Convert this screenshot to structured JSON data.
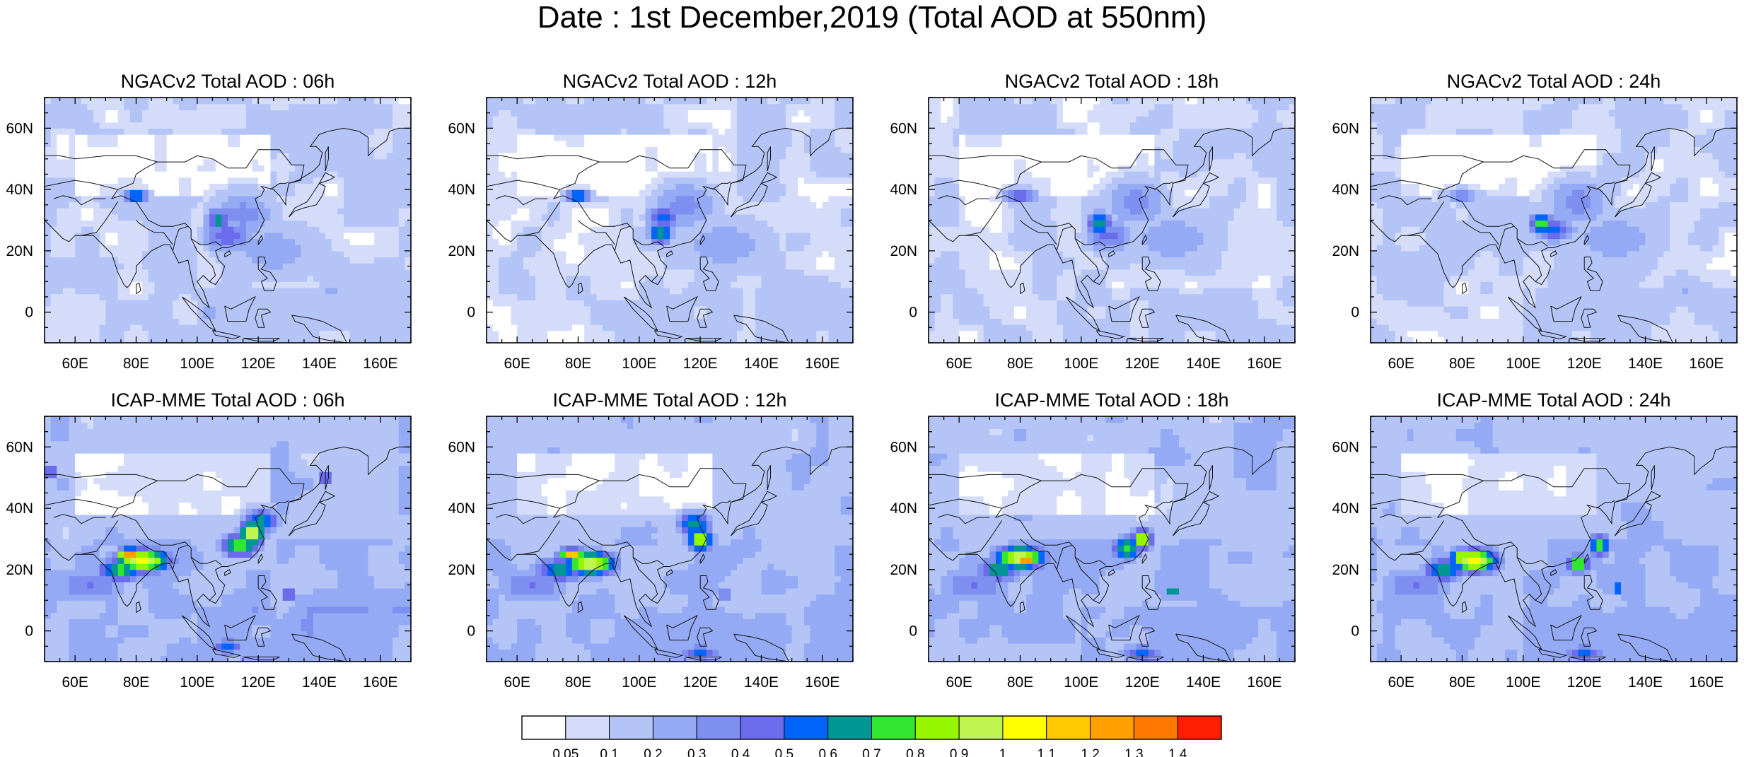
{
  "figure": {
    "title": "Date : 1st December,2019 (Total AOD at 550nm)"
  },
  "chart_data": {
    "type": "heatmap",
    "title": "Date : 1st December,2019 (Total AOD at 550nm)",
    "lon_range": [
      50,
      170
    ],
    "lat_range": [
      -10,
      70
    ],
    "x_ticks": [
      "60E",
      "80E",
      "100E",
      "120E",
      "140E",
      "160E"
    ],
    "y_ticks": [
      "0",
      "20N",
      "40N",
      "60N"
    ],
    "grid": false,
    "panels": [
      {
        "title": "NGACv2 Total AOD : 06h",
        "model": "NGACv2",
        "forecast_hour": "06h",
        "hotspots": [
          {
            "lon": 80,
            "lat": 38,
            "aod": 0.75,
            "sx": 3,
            "sy": 1.5
          },
          {
            "lon": 107,
            "lat": 30,
            "aod": 0.65,
            "sx": 3,
            "sy": 3
          },
          {
            "lon": 110,
            "lat": 25,
            "aod": 0.5,
            "sx": 6,
            "sy": 4
          },
          {
            "lon": 115,
            "lat": 32,
            "aod": 0.35,
            "sx": 8,
            "sy": 6
          },
          {
            "lon": 125,
            "lat": 20,
            "aod": 0.25,
            "sx": 14,
            "sy": 8
          }
        ]
      },
      {
        "title": "NGACv2 Total AOD : 12h",
        "model": "NGACv2",
        "forecast_hour": "12h",
        "hotspots": [
          {
            "lon": 80,
            "lat": 38,
            "aod": 0.72,
            "sx": 3,
            "sy": 1.5
          },
          {
            "lon": 107,
            "lat": 26,
            "aod": 0.7,
            "sx": 3,
            "sy": 3
          },
          {
            "lon": 108,
            "lat": 31,
            "aod": 0.55,
            "sx": 4,
            "sy": 3
          },
          {
            "lon": 115,
            "lat": 35,
            "aod": 0.35,
            "sx": 8,
            "sy": 6
          },
          {
            "lon": 128,
            "lat": 22,
            "aod": 0.25,
            "sx": 14,
            "sy": 8
          }
        ]
      },
      {
        "title": "NGACv2 Total AOD : 18h",
        "model": "NGACv2",
        "forecast_hour": "18h",
        "hotspots": [
          {
            "lon": 80,
            "lat": 38,
            "aod": 0.5,
            "sx": 4,
            "sy": 2
          },
          {
            "lon": 106,
            "lat": 29,
            "aod": 0.68,
            "sx": 3,
            "sy": 3
          },
          {
            "lon": 109,
            "lat": 25,
            "aod": 0.45,
            "sx": 6,
            "sy": 4
          },
          {
            "lon": 118,
            "lat": 36,
            "aod": 0.35,
            "sx": 8,
            "sy": 6
          },
          {
            "lon": 130,
            "lat": 24,
            "aod": 0.25,
            "sx": 14,
            "sy": 8
          }
        ]
      },
      {
        "title": "NGACv2 Total AOD : 24h",
        "model": "NGACv2",
        "forecast_hour": "24h",
        "hotspots": [
          {
            "lon": 80,
            "lat": 38,
            "aod": 0.35,
            "sx": 5,
            "sy": 2
          },
          {
            "lon": 106,
            "lat": 29,
            "aod": 0.75,
            "sx": 3,
            "sy": 2.5
          },
          {
            "lon": 110,
            "lat": 27,
            "aod": 0.55,
            "sx": 5,
            "sy": 3
          },
          {
            "lon": 118,
            "lat": 36,
            "aod": 0.35,
            "sx": 8,
            "sy": 6
          },
          {
            "lon": 130,
            "lat": 24,
            "aod": 0.25,
            "sx": 14,
            "sy": 8
          }
        ]
      },
      {
        "title": "ICAP-MME Total AOD : 06h",
        "model": "ICAP-MME",
        "forecast_hour": "06h",
        "hotspots": [
          {
            "lon": 78,
            "lat": 25,
            "aod": 1.35,
            "sx": 3,
            "sy": 1.5
          },
          {
            "lon": 82,
            "lat": 23,
            "aod": 1.05,
            "sx": 7,
            "sy": 3
          },
          {
            "lon": 75,
            "lat": 20,
            "aod": 0.75,
            "sx": 6,
            "sy": 3
          },
          {
            "lon": 118,
            "lat": 32,
            "aod": 1.1,
            "sx": 3,
            "sy": 3
          },
          {
            "lon": 114,
            "lat": 28,
            "aod": 0.8,
            "sx": 5,
            "sy": 3
          },
          {
            "lon": 121,
            "lat": 36,
            "aod": 0.7,
            "sx": 4,
            "sy": 3
          },
          {
            "lon": 130,
            "lat": 12,
            "aod": 0.75,
            "sx": 1.5,
            "sy": 1.5
          },
          {
            "lon": 52,
            "lat": 52,
            "aod": 0.6,
            "sx": 2,
            "sy": 2
          },
          {
            "lon": 142,
            "lat": 50,
            "aod": 0.55,
            "sx": 2,
            "sy": 2
          },
          {
            "lon": 110,
            "lat": -5,
            "aod": 0.6,
            "sx": 4,
            "sy": 2
          },
          {
            "lon": 65,
            "lat": 15,
            "aod": 0.4,
            "sx": 10,
            "sy": 5
          }
        ]
      },
      {
        "title": "ICAP-MME Total AOD : 12h",
        "model": "ICAP-MME",
        "forecast_hour": "12h",
        "hotspots": [
          {
            "lon": 78,
            "lat": 25,
            "aod": 1.25,
            "sx": 3,
            "sy": 1.5
          },
          {
            "lon": 84,
            "lat": 22,
            "aod": 1.05,
            "sx": 6,
            "sy": 3
          },
          {
            "lon": 74,
            "lat": 20,
            "aod": 0.7,
            "sx": 6,
            "sy": 3
          },
          {
            "lon": 120,
            "lat": 30,
            "aod": 0.95,
            "sx": 3,
            "sy": 3
          },
          {
            "lon": 118,
            "lat": 35,
            "aod": 0.7,
            "sx": 4,
            "sy": 3
          },
          {
            "lon": 128,
            "lat": 12,
            "aod": 0.6,
            "sx": 1.5,
            "sy": 1.5
          },
          {
            "lon": 120,
            "lat": -7,
            "aod": 0.55,
            "sx": 5,
            "sy": 2
          },
          {
            "lon": 65,
            "lat": 15,
            "aod": 0.4,
            "sx": 10,
            "sy": 5
          }
        ]
      },
      {
        "title": "ICAP-MME Total AOD : 18h",
        "model": "ICAP-MME",
        "forecast_hour": "18h",
        "hotspots": [
          {
            "lon": 82,
            "lat": 23,
            "aod": 1.3,
            "sx": 3,
            "sy": 1.5
          },
          {
            "lon": 80,
            "lat": 24,
            "aod": 1.05,
            "sx": 6,
            "sy": 3
          },
          {
            "lon": 73,
            "lat": 20,
            "aod": 0.7,
            "sx": 5,
            "sy": 3
          },
          {
            "lon": 120,
            "lat": 30,
            "aod": 0.95,
            "sx": 2.5,
            "sy": 2.5
          },
          {
            "lon": 115,
            "lat": 27,
            "aod": 0.75,
            "sx": 4,
            "sy": 3
          },
          {
            "lon": 130,
            "lat": 13,
            "aod": 0.75,
            "sx": 1.5,
            "sy": 1.5
          },
          {
            "lon": 120,
            "lat": -7,
            "aod": 0.55,
            "sx": 5,
            "sy": 2
          },
          {
            "lon": 65,
            "lat": 15,
            "aod": 0.4,
            "sx": 10,
            "sy": 5
          }
        ]
      },
      {
        "title": "ICAP-MME Total AOD : 24h",
        "model": "ICAP-MME",
        "forecast_hour": "24h",
        "hotspots": [
          {
            "lon": 80,
            "lat": 24,
            "aod": 1.15,
            "sx": 3,
            "sy": 1.5
          },
          {
            "lon": 84,
            "lat": 23,
            "aod": 1.05,
            "sx": 6,
            "sy": 3
          },
          {
            "lon": 74,
            "lat": 20,
            "aod": 0.7,
            "sx": 5,
            "sy": 3
          },
          {
            "lon": 118,
            "lat": 22,
            "aod": 0.85,
            "sx": 3,
            "sy": 2.5
          },
          {
            "lon": 125,
            "lat": 28,
            "aod": 0.75,
            "sx": 3,
            "sy": 3
          },
          {
            "lon": 131,
            "lat": 14,
            "aod": 0.7,
            "sx": 1.5,
            "sy": 1.5
          },
          {
            "lon": 120,
            "lat": -7,
            "aod": 0.55,
            "sx": 5,
            "sy": 2
          },
          {
            "lon": 65,
            "lat": 15,
            "aod": 0.4,
            "sx": 10,
            "sy": 5
          }
        ]
      }
    ],
    "colorbar": {
      "levels": [
        "0.05",
        "0.1",
        "0.2",
        "0.3",
        "0.4",
        "0.5",
        "0.6",
        "0.7",
        "0.8",
        "0.9",
        "1",
        "1.1",
        "1.2",
        "1.3",
        "1.4"
      ],
      "level_values": [
        0.05,
        0.1,
        0.2,
        0.3,
        0.4,
        0.5,
        0.6,
        0.7,
        0.8,
        0.9,
        1.0,
        1.1,
        1.2,
        1.3,
        1.4
      ],
      "colors": [
        "#ffffff",
        "#d4dcfa",
        "#b4c4f7",
        "#95aaf4",
        "#7e8ff0",
        "#6a6cec",
        "#0064f9",
        "#009696",
        "#32e632",
        "#96f500",
        "#c0f550",
        "#ffff00",
        "#ffc800",
        "#ffa000",
        "#ff7800",
        "#ff1e00"
      ]
    }
  }
}
